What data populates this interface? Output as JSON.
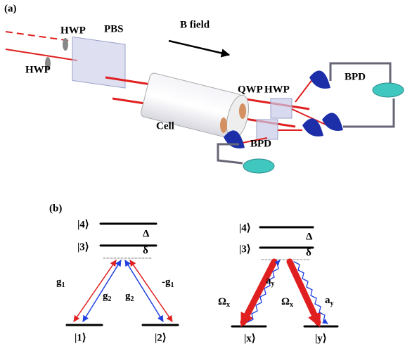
{
  "panel_a": {
    "label": "(a)",
    "hwp_top": "HWP",
    "hwp_left": "HWP",
    "pbs": "PBS",
    "b_field": "B field",
    "qwp": "QWP",
    "hwp_right": "HWP",
    "bpd_right": "BPD",
    "bpd_bottom": "BPD",
    "cell": "Cell"
  },
  "panel_b": {
    "label": "(b)",
    "left": {
      "level4": "|4⟩",
      "level3": "|3⟩",
      "splitting": "Δ",
      "detuning": "δ",
      "level1": "|1⟩",
      "level2": "|2⟩",
      "coupling_1": {
        "main": "g",
        "sub": "1"
      },
      "coupling_2": {
        "main": "g",
        "sub": "2"
      },
      "coupling_3": {
        "main": "g",
        "sub": "2"
      },
      "coupling_4": {
        "main": "-g",
        "sub": "1"
      }
    },
    "right": {
      "level4": "|4⟩",
      "level3": "|3⟩",
      "splitting": "Δ",
      "detuning": "δ",
      "level_x": "|x⟩",
      "level_y": "|y⟩",
      "drive_1": {
        "main": "Ω",
        "sub": "x"
      },
      "probe_1": {
        "main": "a",
        "sub": "y"
      },
      "drive_2": {
        "main": "Ω",
        "sub": "x"
      },
      "probe_2": {
        "main": "a",
        "sub": "y"
      }
    }
  }
}
